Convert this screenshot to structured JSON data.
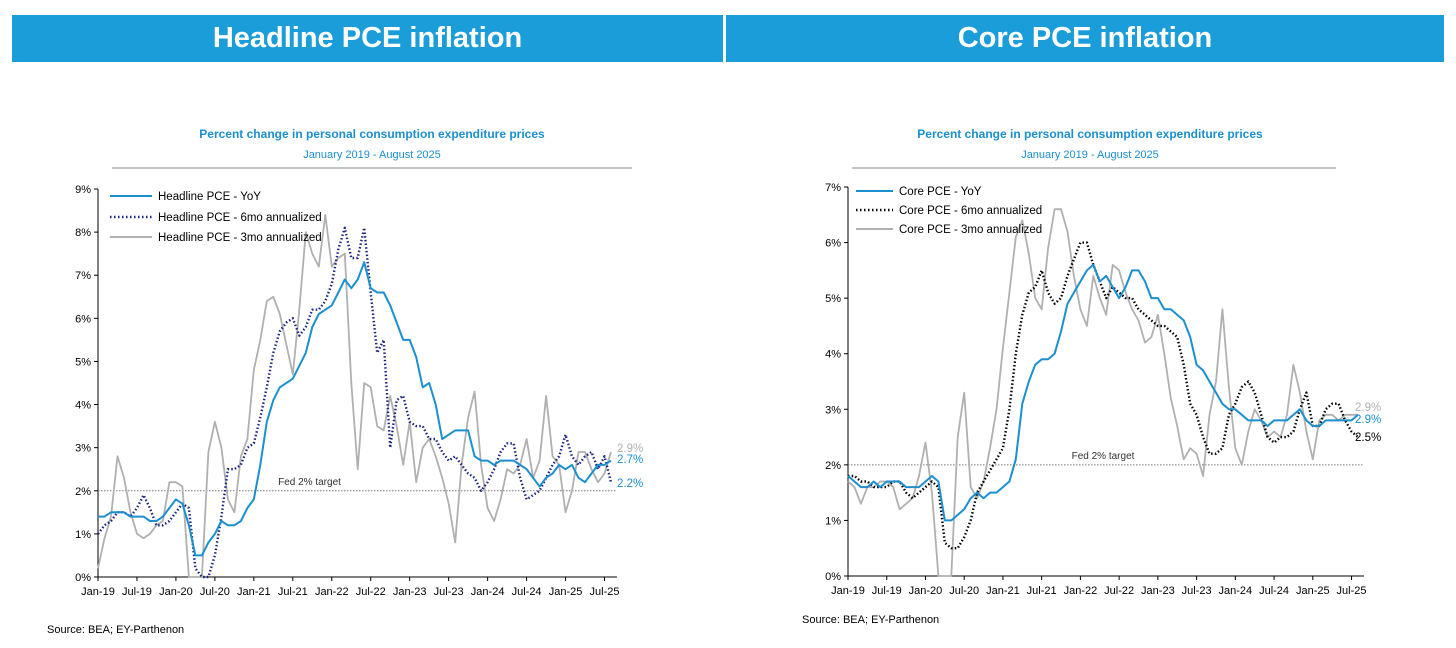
{
  "panels": [
    {
      "banner": "Headline PCE inflation",
      "source": "Source: BEA; EY-Parthenon",
      "end_labels": [
        {
          "text": "2.9%",
          "color": "#b0b0b0"
        },
        {
          "text": "2.7%",
          "color": "#1b8fd0"
        },
        {
          "text": "2.2%",
          "color": "#1b8fd0"
        }
      ]
    },
    {
      "banner": "Core PCE inflation",
      "source": "Source: BEA; EY-Parthenon",
      "end_labels": [
        {
          "text": "2.9%",
          "color": "#b0b0b0"
        },
        {
          "text": "2.9%",
          "color": "#1b8fd0"
        },
        {
          "text": "2.5%",
          "color": "#000000"
        }
      ]
    }
  ],
  "colors": {
    "banner": "#1b9dd9",
    "yoy": "#1b8fd0",
    "six_month": "#1a237e",
    "three_month": "#b0b0b0"
  },
  "chart_data": [
    {
      "type": "line",
      "title": "Percent change in personal consumption expenditure prices",
      "subtitle": "January 2019 - August 2025",
      "x_start": "Jan-19",
      "x_end": "Aug-25",
      "x_tick_labels": [
        "Jan-19",
        "Jul-19",
        "Jan-20",
        "Jul-20",
        "Jan-21",
        "Jul-21",
        "Jan-22",
        "Jul-22",
        "Jan-23",
        "Jul-23",
        "Jan-24",
        "Jul-24",
        "Jan-25",
        "Jul-25"
      ],
      "ylim": [
        0,
        9
      ],
      "y_tick_labels": [
        "0%",
        "1%",
        "2%",
        "3%",
        "4%",
        "5%",
        "6%",
        "7%",
        "8%",
        "9%"
      ],
      "reference_line": {
        "value": 2,
        "label": "Fed 2% target"
      },
      "series": [
        {
          "name": "Headline PCE - YoY",
          "style": "solid",
          "values": [
            1.4,
            1.4,
            1.5,
            1.5,
            1.5,
            1.4,
            1.4,
            1.4,
            1.3,
            1.3,
            1.4,
            1.6,
            1.8,
            1.7,
            1.2,
            0.5,
            0.5,
            0.8,
            1.0,
            1.3,
            1.2,
            1.2,
            1.3,
            1.6,
            1.8,
            2.6,
            3.6,
            4.1,
            4.4,
            4.5,
            4.6,
            4.9,
            5.2,
            5.8,
            6.1,
            6.2,
            6.3,
            6.6,
            6.9,
            6.7,
            6.9,
            7.3,
            6.7,
            6.6,
            6.6,
            6.3,
            5.9,
            5.5,
            5.5,
            5.1,
            4.4,
            4.5,
            4.0,
            3.2,
            3.3,
            3.4,
            3.4,
            3.4,
            2.8,
            2.7,
            2.7,
            2.6,
            2.7,
            2.7,
            2.7,
            2.6,
            2.5,
            2.3,
            2.1,
            2.3,
            2.4,
            2.6,
            2.5,
            2.6,
            2.3,
            2.2,
            2.4,
            2.6,
            2.6,
            2.7
          ]
        },
        {
          "name": "Headline PCE - 6mo annualized",
          "style": "dotted",
          "values": [
            1.0,
            1.2,
            1.3,
            1.5,
            1.5,
            1.4,
            1.6,
            1.9,
            1.6,
            1.2,
            1.2,
            1.3,
            1.5,
            1.7,
            1.6,
            0.2,
            0.0,
            0.0,
            0.5,
            1.4,
            2.5,
            2.5,
            2.6,
            3.0,
            3.1,
            3.7,
            4.4,
            5.2,
            5.7,
            5.9,
            6.0,
            5.6,
            5.8,
            6.2,
            6.2,
            6.4,
            6.8,
            7.6,
            8.1,
            7.4,
            7.4,
            8.1,
            6.6,
            5.2,
            5.5,
            3.0,
            4.1,
            4.2,
            3.6,
            3.5,
            3.5,
            3.2,
            3.2,
            2.9,
            2.7,
            2.8,
            2.6,
            2.4,
            2.3,
            2.0,
            2.2,
            2.5,
            2.9,
            3.1,
            3.1,
            2.3,
            1.8,
            1.9,
            2.0,
            2.3,
            2.6,
            2.8,
            3.3,
            2.8,
            2.6,
            2.8,
            2.9,
            2.5,
            2.8,
            2.2
          ]
        },
        {
          "name": "Headline PCE - 3mo annualized",
          "style": "solid",
          "values": [
            0.2,
            0.9,
            1.4,
            2.8,
            2.3,
            1.5,
            1.0,
            0.9,
            1.0,
            1.2,
            1.3,
            2.2,
            2.2,
            2.1,
            0.0,
            0.0,
            0.0,
            2.9,
            3.6,
            3.0,
            1.8,
            1.5,
            2.8,
            3.2,
            4.8,
            5.5,
            6.4,
            6.5,
            6.1,
            5.4,
            4.7,
            6.2,
            8.0,
            7.5,
            7.2,
            8.4,
            7.2,
            7.4,
            7.5,
            4.5,
            2.5,
            4.5,
            4.4,
            3.5,
            3.4,
            4.2,
            3.5,
            2.6,
            3.6,
            2.2,
            3.0,
            3.2,
            2.8,
            2.3,
            1.7,
            0.8,
            2.6,
            3.7,
            4.3,
            2.6,
            1.6,
            1.3,
            1.8,
            2.5,
            2.4,
            2.6,
            3.2,
            2.3,
            2.7,
            4.2,
            2.8,
            2.6,
            1.5,
            2.0,
            2.9,
            2.9,
            2.5,
            2.2,
            2.4,
            2.9
          ]
        }
      ]
    },
    {
      "type": "line",
      "title": "Percent change in personal consumption expenditure prices",
      "subtitle": "January 2019 - August 2025",
      "x_start": "Jan-19",
      "x_end": "Aug-25",
      "x_tick_labels": [
        "Jan-19",
        "Jul-19",
        "Jan-20",
        "Jul-20",
        "Jan-21",
        "Jul-21",
        "Jan-22",
        "Jul-22",
        "Jan-23",
        "Jul-23",
        "Jan-24",
        "Jul-24",
        "Jan-25",
        "Jul-25"
      ],
      "ylim": [
        0,
        7
      ],
      "y_tick_labels": [
        "0%",
        "1%",
        "2%",
        "3%",
        "4%",
        "5%",
        "6%",
        "7%"
      ],
      "reference_line": {
        "value": 2,
        "label": "Fed 2% target"
      },
      "series": [
        {
          "name": "Core PCE - YoY",
          "style": "solid",
          "values": [
            1.8,
            1.7,
            1.6,
            1.6,
            1.7,
            1.6,
            1.7,
            1.7,
            1.7,
            1.6,
            1.6,
            1.6,
            1.7,
            1.8,
            1.7,
            1.0,
            1.0,
            1.1,
            1.2,
            1.4,
            1.5,
            1.4,
            1.5,
            1.5,
            1.6,
            1.7,
            2.1,
            3.1,
            3.5,
            3.8,
            3.9,
            3.9,
            4.0,
            4.4,
            4.9,
            5.1,
            5.3,
            5.5,
            5.6,
            5.3,
            5.4,
            5.2,
            5.0,
            5.2,
            5.5,
            5.5,
            5.3,
            5.0,
            5.0,
            4.8,
            4.8,
            4.7,
            4.6,
            4.3,
            3.8,
            3.7,
            3.5,
            3.3,
            3.1,
            3.0,
            3.0,
            2.9,
            2.8,
            2.8,
            2.8,
            2.7,
            2.8,
            2.8,
            2.8,
            2.9,
            3.0,
            2.8,
            2.7,
            2.7,
            2.8,
            2.8,
            2.8,
            2.8,
            2.8,
            2.9
          ]
        },
        {
          "name": "Core PCE - 6mo annualized",
          "style": "dotted",
          "values": [
            1.8,
            1.8,
            1.7,
            1.7,
            1.6,
            1.6,
            1.6,
            1.7,
            1.7,
            1.5,
            1.4,
            1.5,
            1.6,
            1.7,
            1.6,
            0.6,
            0.5,
            0.5,
            0.7,
            1.0,
            1.5,
            1.7,
            1.9,
            2.1,
            2.3,
            3.0,
            4.0,
            4.7,
            5.1,
            5.2,
            5.5,
            5.1,
            4.9,
            5.0,
            5.4,
            5.7,
            6.0,
            6.0,
            5.6,
            5.3,
            5.0,
            5.2,
            5.1,
            5.0,
            5.0,
            4.8,
            4.7,
            4.6,
            4.5,
            4.5,
            4.4,
            4.3,
            3.8,
            3.1,
            2.9,
            2.5,
            2.2,
            2.2,
            2.3,
            2.9,
            3.1,
            3.4,
            3.5,
            3.3,
            2.9,
            2.5,
            2.4,
            2.5,
            2.5,
            2.6,
            3.0,
            3.3,
            2.7,
            2.7,
            3.0,
            3.1,
            3.1,
            2.8,
            2.6,
            2.5
          ]
        },
        {
          "name": "Core PCE - 3mo annualized",
          "style": "solid",
          "values": [
            1.7,
            1.6,
            1.3,
            1.6,
            1.6,
            1.7,
            1.7,
            1.6,
            1.2,
            1.3,
            1.4,
            1.8,
            2.4,
            1.5,
            0.0,
            0.0,
            0.0,
            2.5,
            3.3,
            1.6,
            1.4,
            1.7,
            2.3,
            3.0,
            4.1,
            5.1,
            6.1,
            6.4,
            5.8,
            5.0,
            4.8,
            5.9,
            6.6,
            6.6,
            6.2,
            5.4,
            4.8,
            4.5,
            5.4,
            5.0,
            4.7,
            5.6,
            5.5,
            5.1,
            4.8,
            4.6,
            4.2,
            4.3,
            4.7,
            4.0,
            3.2,
            2.7,
            2.1,
            2.3,
            2.2,
            1.8,
            2.9,
            3.5,
            4.8,
            3.4,
            2.3,
            2.0,
            2.6,
            3.0,
            2.8,
            2.5,
            2.6,
            2.5,
            2.9,
            3.8,
            3.3,
            2.6,
            2.1,
            2.8,
            2.9,
            2.9,
            2.8,
            2.9,
            2.9,
            2.9
          ]
        }
      ]
    }
  ]
}
